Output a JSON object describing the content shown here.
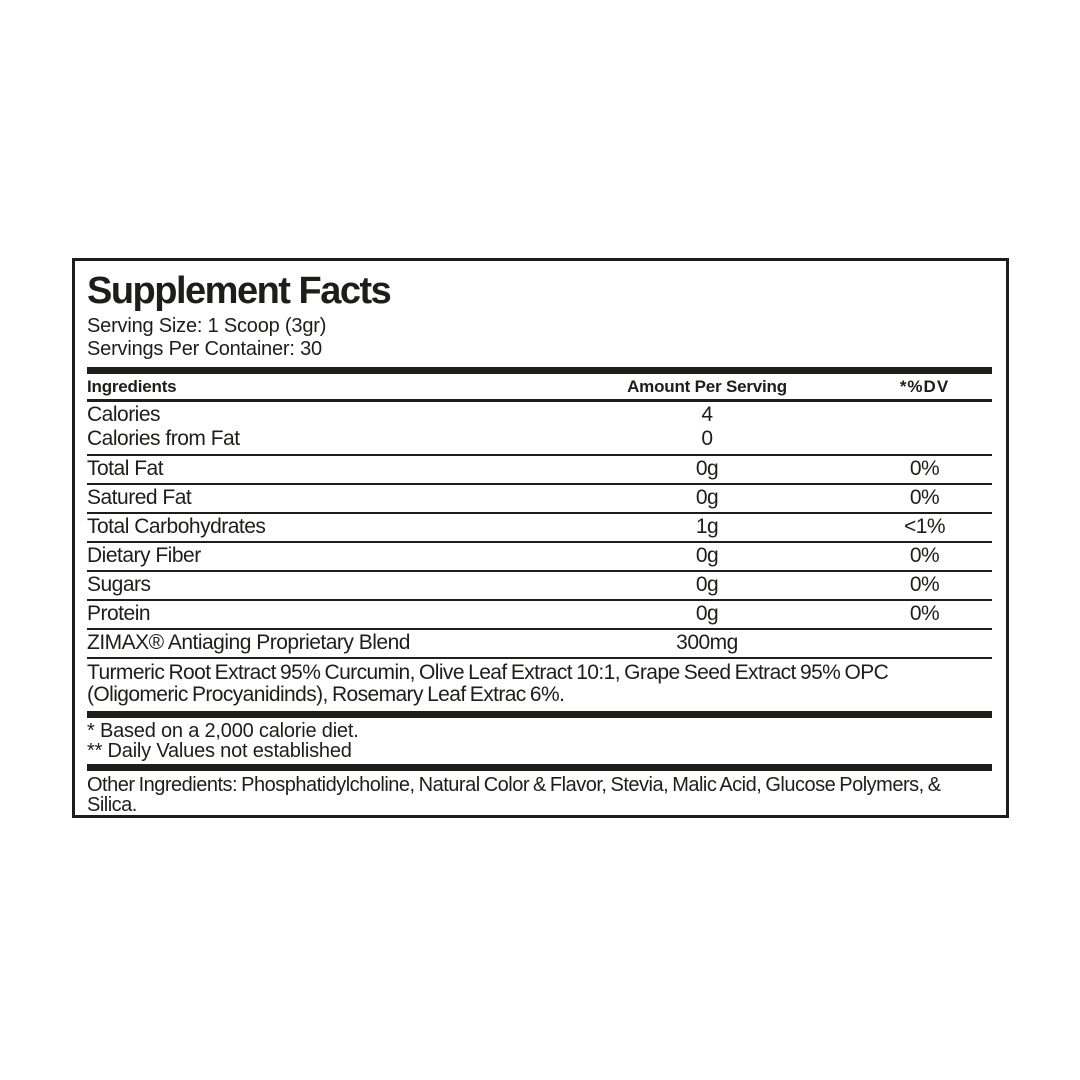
{
  "label": {
    "title": "Supplement Facts",
    "serving_size": "Serving Size: 1 Scoop (3gr)",
    "servings_per_container": "Servings Per Container: 30",
    "columns": {
      "ingredients": "Ingredients",
      "amount": "Amount Per Serving",
      "dv": "*%DV"
    },
    "rows": [
      {
        "label": "Calories",
        "amount": "4",
        "dv": ""
      },
      {
        "label": "Calories from Fat",
        "amount": "0",
        "dv": ""
      },
      {
        "label": "Total Fat",
        "amount": "0g",
        "dv": "0%"
      },
      {
        "label": "Satured Fat",
        "amount": "0g",
        "dv": "0%"
      },
      {
        "label": "Total Carbohydrates",
        "amount": "1g",
        "dv": "<1%"
      },
      {
        "label": "Dietary Fiber",
        "amount": "0g",
        "dv": "0%"
      },
      {
        "label": "Sugars",
        "amount": "0g",
        "dv": "0%"
      },
      {
        "label": "Protein",
        "amount": "0g",
        "dv": "0%"
      },
      {
        "label": "ZIMAX® Antiaging Proprietary Blend",
        "amount": "300mg",
        "dv": ""
      }
    ],
    "blend_description": "Turmeric Root Extract 95% Curcumin, Olive Leaf Extract 10:1, Grape Seed Extract 95% OPC (Oligomeric Procyanidinds), Rosemary Leaf Extrac 6%.",
    "footnote_1": "* Based on a 2,000 calorie diet.",
    "footnote_2": "** Daily Values not established",
    "other_ingredients": "Other Ingredients: Phosphatidylcholine, Natural Color & Flavor, Stevia, Malic Acid, Glucose Polymers, & Silica.",
    "colors": {
      "ink": "#1d1d1b",
      "background": "#ffffff"
    }
  }
}
